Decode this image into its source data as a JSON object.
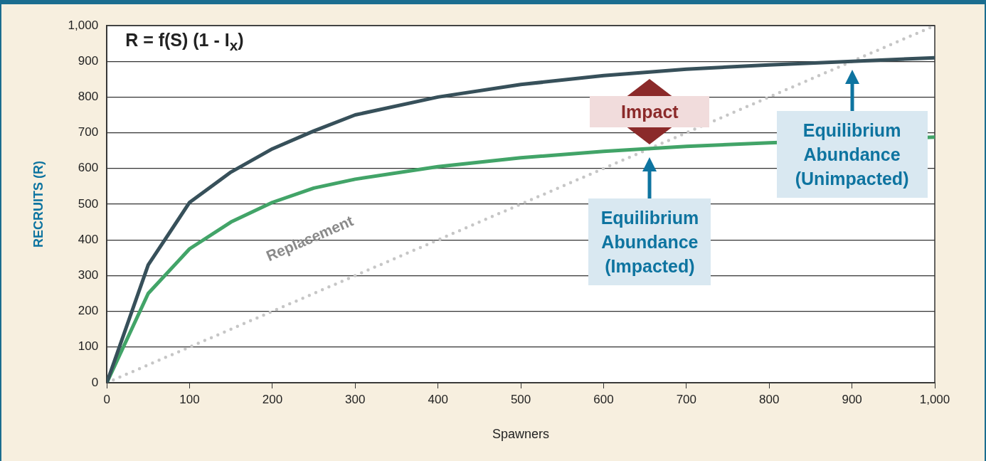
{
  "chart_data": {
    "type": "line",
    "title": "R = f(S) (1 - I$_{x}$)",
    "xlabel": "Spawners",
    "ylabel": "RECRUITS (R)",
    "x": [
      0,
      50,
      100,
      150,
      200,
      250,
      300,
      400,
      500,
      600,
      700,
      800,
      900,
      1000
    ],
    "series": [
      {
        "color": "#37505a",
        "values": [
          0,
          330,
          505,
          590,
          655,
          705,
          750,
          800,
          835,
          860,
          878,
          890,
          900,
          910
        ],
        "line_style": "solid"
      },
      {
        "color": "#42a468",
        "values": [
          0,
          250,
          375,
          450,
          505,
          545,
          570,
          605,
          630,
          648,
          662,
          672,
          null,
          688
        ],
        "line_style": "solid"
      },
      {
        "name": "Replacement",
        "color": "#c6c6c6",
        "x": [
          0,
          1000
        ],
        "values": [
          0,
          1000
        ],
        "line_style": "dotted"
      }
    ],
    "xlim": [
      0,
      1000
    ],
    "xticks": [
      0,
      100,
      200,
      300,
      400,
      500,
      600,
      700,
      800,
      900,
      {
        "value": 1000,
        "label": "1,000"
      }
    ],
    "ylim": [
      0,
      1000
    ],
    "yticks": [
      0,
      100,
      200,
      300,
      400,
      500,
      600,
      700,
      800,
      900,
      {
        "value": 1000,
        "label": "1,000"
      }
    ],
    "grid": "y",
    "legend": false,
    "marker": "none",
    "annotations": [
      "Impact",
      "Equilibrium Abundance (Impacted)",
      "Equilibrium Abundance (Unimpacted)"
    ]
  }
}
